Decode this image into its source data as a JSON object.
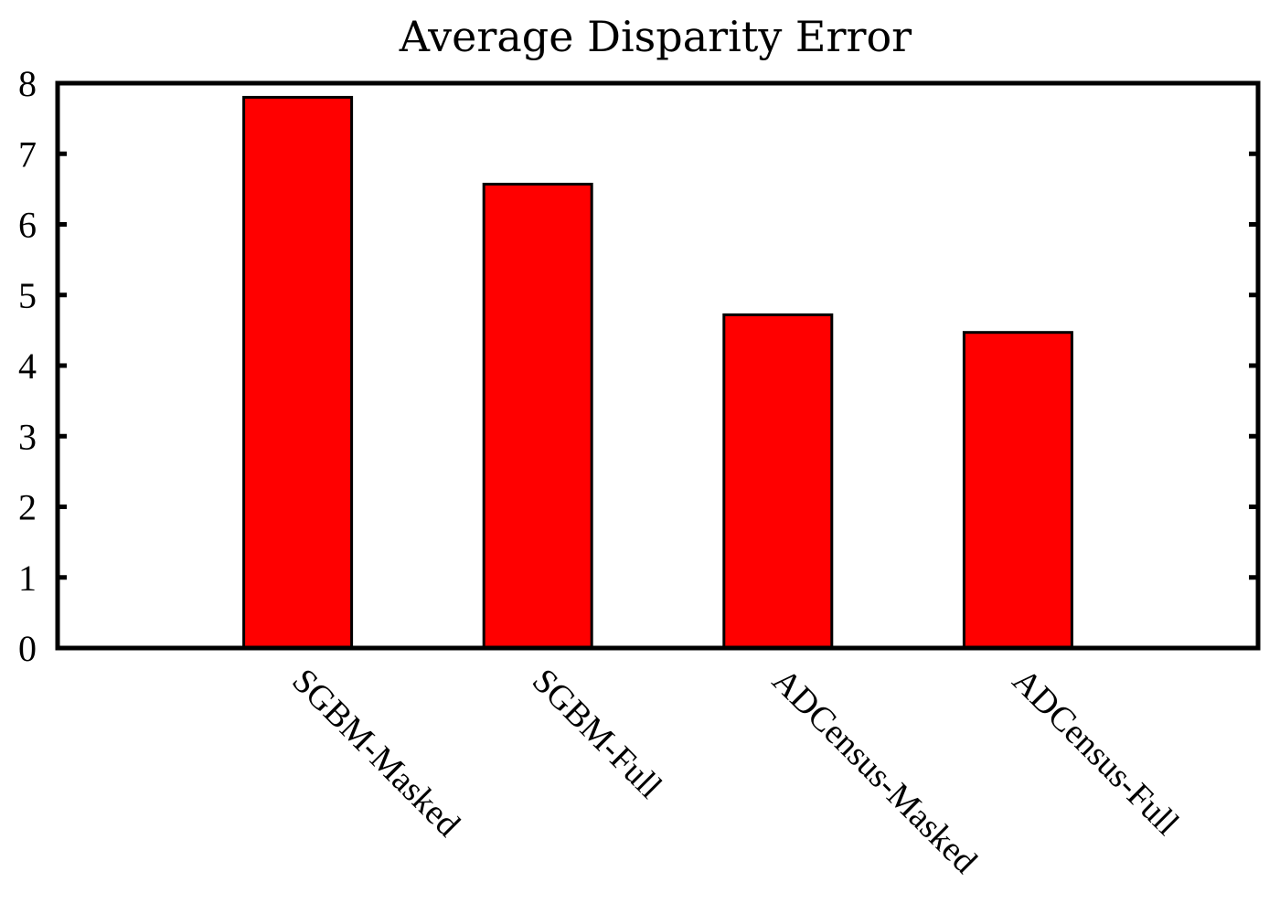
{
  "chart_data": {
    "type": "bar",
    "title": "Average Disparity Error",
    "xlabel": "",
    "ylabel": "",
    "categories": [
      "SGBM-Masked",
      "SGBM-Full",
      "ADCensus-Masked",
      "ADCensus-Full"
    ],
    "values": [
      7.8,
      6.57,
      4.72,
      4.47
    ],
    "ylim": [
      0,
      8
    ],
    "yticks": [
      "0",
      "1",
      "2",
      "3",
      "4",
      "5",
      "6",
      "7",
      "8"
    ],
    "bar_color": "#ff0000",
    "grid": false,
    "legend": "none"
  }
}
